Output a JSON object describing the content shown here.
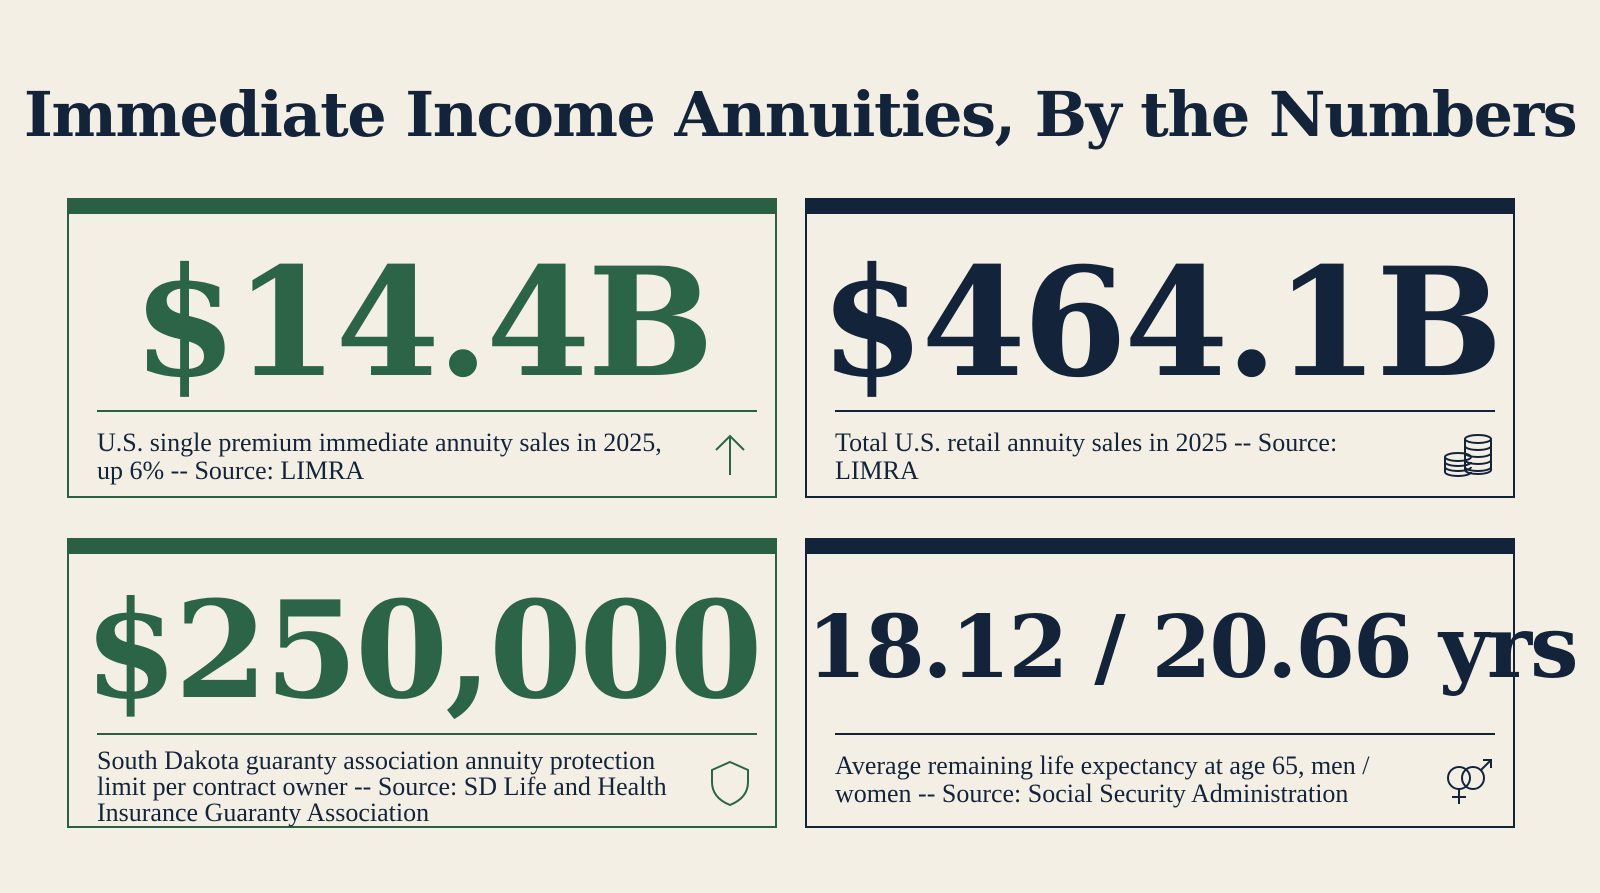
{
  "title": "Immediate Income Annuities, By the Numbers",
  "colors": {
    "green": "#2b6446",
    "navy": "#13243a",
    "background": "#f4efe5"
  },
  "cards": [
    {
      "stat": "$14.4B",
      "description": "U.S. single premium immediate annuity sales in 2025, up 6% -- Source: LIMRA",
      "icon": "arrow-up-icon",
      "accent": "green"
    },
    {
      "stat": "$464.1B",
      "description": "Total U.S. retail annuity sales in 2025 -- Source: LIMRA",
      "icon": "coin-stack-icon",
      "accent": "navy"
    },
    {
      "stat": "$250,000",
      "description": "South Dakota guaranty association annuity protection limit per contract owner -- Source: SD Life and Health Insurance Guaranty Association",
      "icon": "shield-icon",
      "accent": "green"
    },
    {
      "stat": "18.12 / 20.66 yrs",
      "description": "Average remaining life expectancy at age 65, men / women -- Source: Social Security Administration",
      "icon": "gender-symbols-icon",
      "accent": "navy"
    }
  ]
}
